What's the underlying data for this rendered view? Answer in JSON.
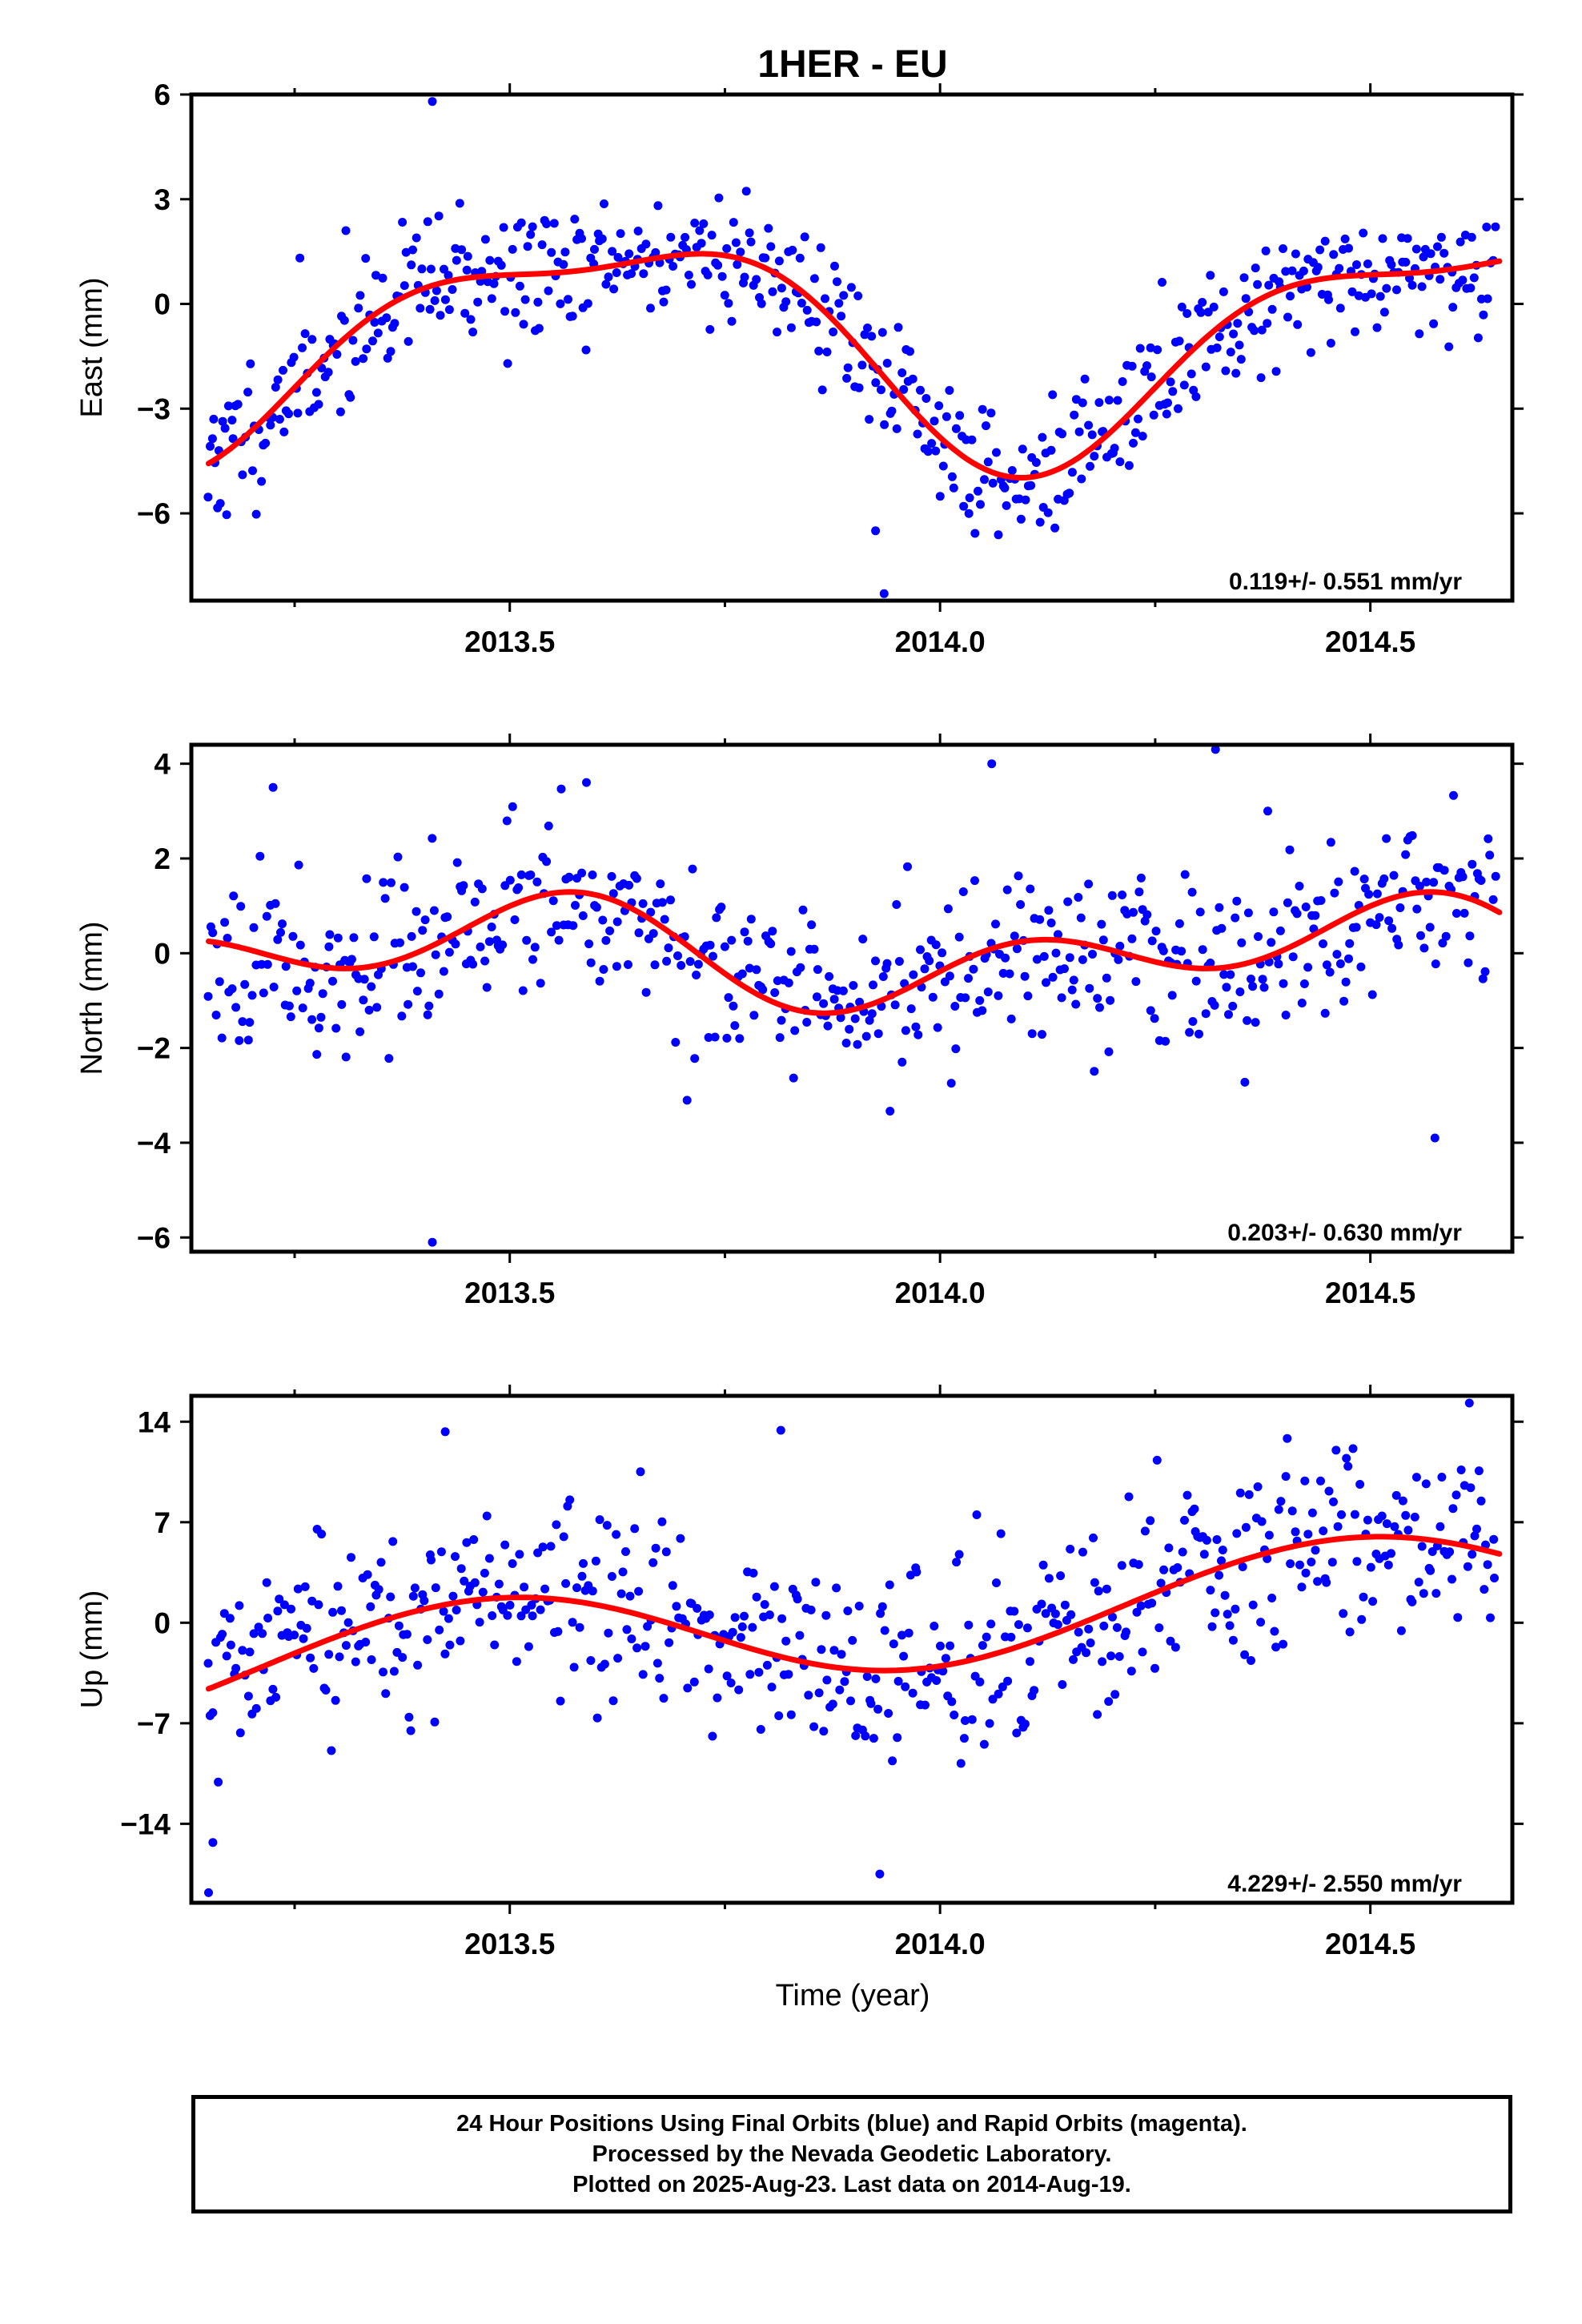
{
  "title": "1HER - EU",
  "colors": {
    "points": "#0000ff",
    "fit": "#ff0000",
    "frame": "#000000"
  },
  "x_axis": {
    "label": "Time (year)",
    "range": [
      2013.13,
      2014.665
    ],
    "major_ticks": [
      2013.5,
      2014.0,
      2014.5
    ],
    "major_tick_labels": [
      "2013.5",
      "2014.0",
      "2014.5"
    ],
    "minor_ticks": [
      2013.25,
      2013.75,
      2014.25
    ]
  },
  "chart_data": [
    {
      "type": "scatter",
      "name": "east",
      "ylabel": "East (mm)",
      "ylim": [
        -8.5,
        6.0
      ],
      "yticks": [
        6,
        3,
        0,
        -3,
        -6
      ],
      "ytick_labels": [
        "6",
        "3",
        "0",
        "−3",
        "−6"
      ],
      "rate_label": "0.119+/- 0.551 mm/yr",
      "fit": {
        "offset": -1.0,
        "amp1": 3.0,
        "phase1": 4.03,
        "amp2": 1.0,
        "phase2": 3.66
      },
      "point_spread": 1.0,
      "seed": 11,
      "outliers": [
        [
          2013.156,
          -3.3
        ],
        [
          2013.162,
          -4.2
        ],
        [
          2013.41,
          5.8
        ],
        [
          2013.925,
          -6.5
        ],
        [
          2013.935,
          -8.3
        ]
      ]
    },
    {
      "type": "scatter",
      "name": "north",
      "ylabel": "North (mm)",
      "ylim": [
        -6.3,
        4.4
      ],
      "yticks": [
        4,
        2,
        0,
        -2,
        -4,
        -6
      ],
      "ytick_labels": [
        "4",
        "2",
        "0",
        "−2",
        "−4",
        "−6"
      ],
      "rate_label": "0.203+/- 0.630 mm/yr",
      "fit": {
        "offset": 0.0,
        "amp1": 0.7,
        "phase1": 4.89,
        "amp2": 0.75,
        "phase2": 0.42
      },
      "point_spread": 0.9,
      "seed": 23,
      "outliers": [
        [
          2013.41,
          -6.1
        ],
        [
          2014.32,
          4.3
        ],
        [
          2014.575,
          -3.9
        ],
        [
          2013.225,
          3.5
        ],
        [
          2014.06,
          4.0
        ]
      ]
    },
    {
      "type": "scatter",
      "name": "up",
      "ylabel": "Up (mm)",
      "ylim": [
        -19.5,
        15.8
      ],
      "yticks": [
        14,
        7,
        0,
        -7,
        -14
      ],
      "ytick_labels": [
        "14",
        "7",
        "0",
        "−7",
        "−14"
      ],
      "rate_label": "4.229+/- 2.550 mm/yr",
      "fit": {
        "offset": 0.0,
        "amp1": 3.5,
        "phase1": 4.89,
        "amp2": 0.1,
        "phase2": 0.0
      },
      "trend": 4.229,
      "trend_ref": 2013.9,
      "point_spread": 3.3,
      "seed": 37,
      "outliers": [
        [
          2013.15,
          -18.8
        ],
        [
          2013.155,
          -15.3
        ],
        [
          2013.93,
          -17.5
        ],
        [
          2014.615,
          15.3
        ],
        [
          2013.425,
          13.3
        ],
        [
          2013.815,
          13.4
        ]
      ]
    }
  ],
  "footer": {
    "line1": "24 Hour Positions Using Final Orbits (blue) and Rapid Orbits (magenta).",
    "line2": "Processed by the Nevada Geodetic Laboratory.",
    "line3": "Plotted on 2025-Aug-23. Last data on 2014-Aug-19."
  }
}
